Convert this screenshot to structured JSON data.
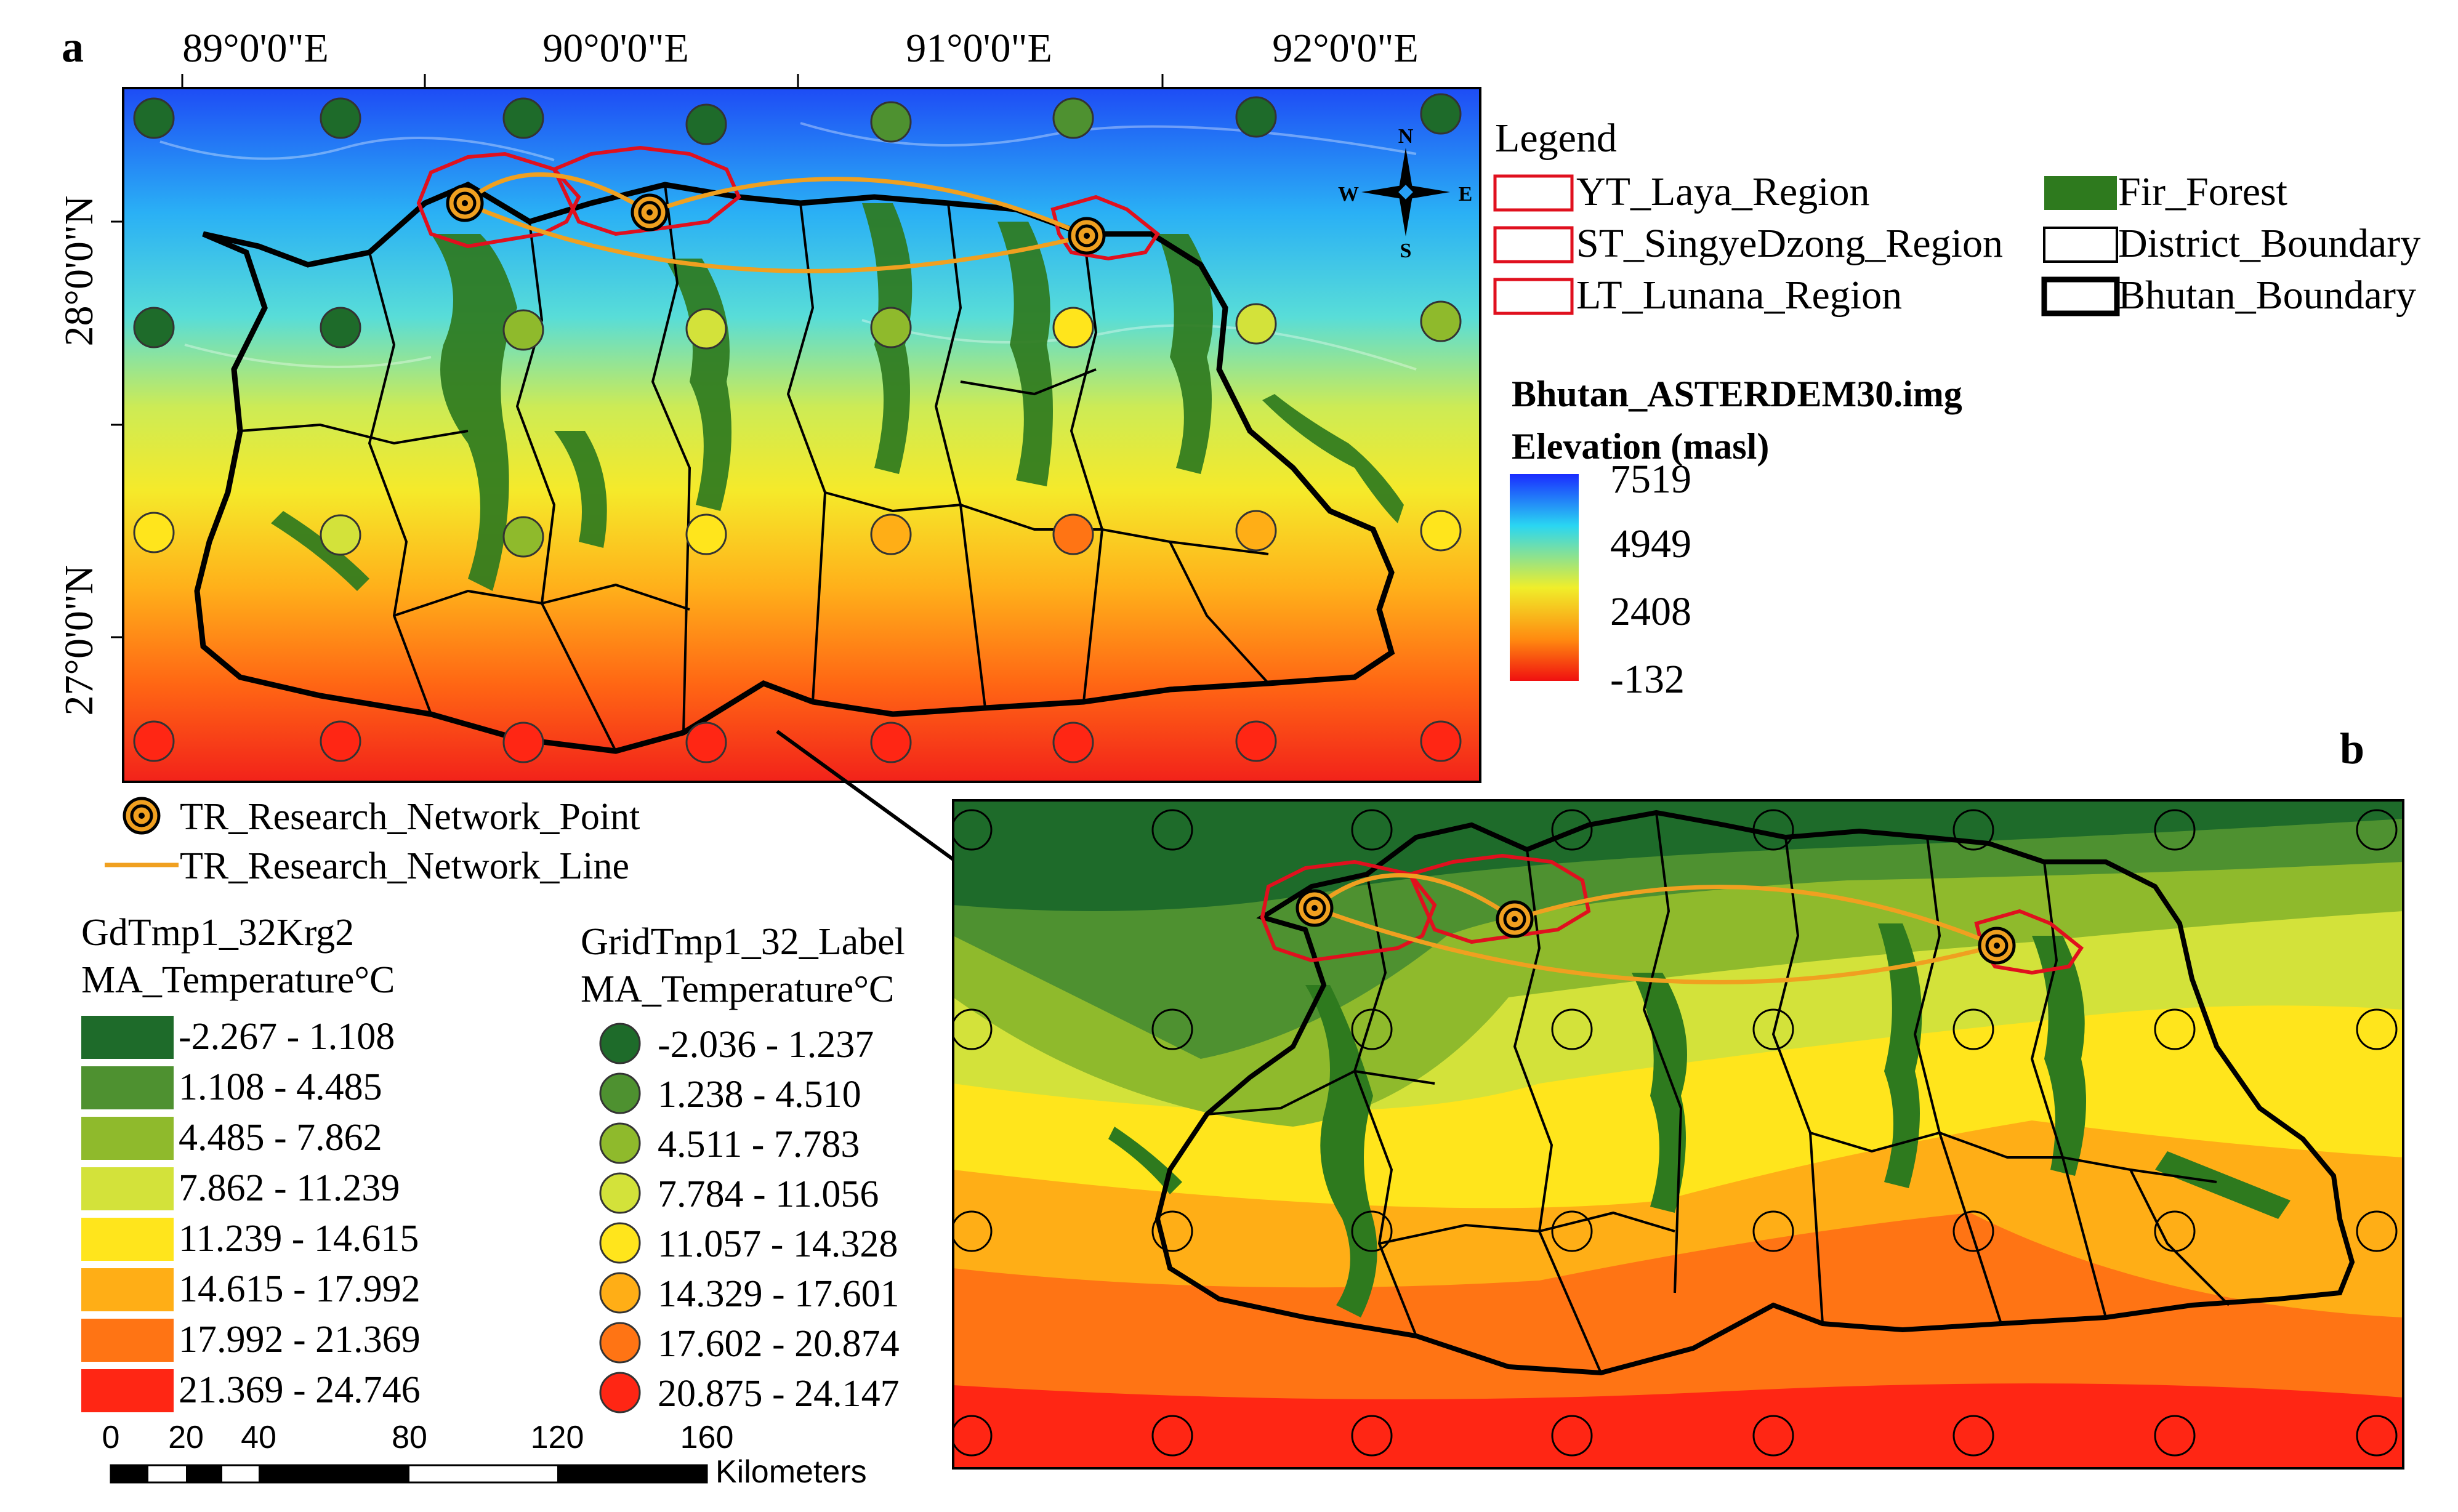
{
  "panel_a": {
    "label": "a",
    "lon_labels": [
      "89°0'0\"E",
      "90°0'0\"E",
      "91°0'0\"E",
      "92°0'0\"E"
    ],
    "lat_labels": [
      "28°0'0\"N",
      "27°0'0\"N"
    ],
    "compass": {
      "n": "N",
      "s": "S",
      "e": "E",
      "w": "W"
    }
  },
  "panel_b": {
    "label": "b"
  },
  "legend": {
    "title": "Legend",
    "items": [
      {
        "label": "YT_Laya_Region",
        "type": "region-outline",
        "color": "#e0101e"
      },
      {
        "label": "ST_SingyeDzong_Region",
        "type": "region-outline",
        "color": "#e0101e"
      },
      {
        "label": "LT_Lunana_Region",
        "type": "region-outline",
        "color": "#e0101e"
      },
      {
        "label": "Fir_Forest",
        "type": "fill",
        "color": "#2e7a1e"
      },
      {
        "label": "District_Boundary",
        "type": "outline-thin",
        "color": "#000000"
      },
      {
        "label": "Bhutan_Boundary",
        "type": "outline-thick",
        "color": "#000000"
      }
    ]
  },
  "dem": {
    "title": "Bhutan_ASTERDEM30.img",
    "subtitle": "Elevation (masl)",
    "ticks": [
      "7519",
      "4949",
      "2408",
      "-132"
    ],
    "colors": [
      "#1a3cff",
      "#35d8f0",
      "#e8ee2a",
      "#ff8a10",
      "#f01010"
    ]
  },
  "network": {
    "point_label": "TR_Research_Network_Point",
    "line_label": "TR_Research_Network_Line",
    "line_color": "#f0a020"
  },
  "krig_legend": {
    "title": "GdTmp1_32Krg2",
    "subtitle": "MA_Temperature°C",
    "classes": [
      {
        "label": "-2.267 - 1.108",
        "color": "#1e6b2a"
      },
      {
        "label": "1.108 - 4.485",
        "color": "#4e9130"
      },
      {
        "label": "4.485 - 7.862",
        "color": "#8fba2c"
      },
      {
        "label": "7.862 - 11.239",
        "color": "#d3e23a"
      },
      {
        "label": "11.239 - 14.615",
        "color": "#ffe51c"
      },
      {
        "label": "14.615 - 17.992",
        "color": "#ffae16"
      },
      {
        "label": "17.992 - 21.369",
        "color": "#ff7414"
      },
      {
        "label": "21.369 - 24.746",
        "color": "#ff2614"
      }
    ]
  },
  "label_legend": {
    "title": "GridTmp1_32_Label",
    "subtitle": "MA_Temperature°C",
    "classes": [
      {
        "label": "-2.036 - 1.237",
        "color": "#1e6b2a"
      },
      {
        "label": "1.238 - 4.510",
        "color": "#4e9130"
      },
      {
        "label": "4.511 - 7.783",
        "color": "#8fba2c"
      },
      {
        "label": "7.784 - 11.056",
        "color": "#d3e23a"
      },
      {
        "label": "11.057 - 14.328",
        "color": "#ffe51c"
      },
      {
        "label": "14.329 - 17.601",
        "color": "#ffae16"
      },
      {
        "label": "17.602 - 20.874",
        "color": "#ff7414"
      },
      {
        "label": "20.875 - 24.147",
        "color": "#ff2614"
      }
    ]
  },
  "scale_bar": {
    "ticks": [
      "0",
      "20",
      "40",
      "80",
      "120",
      "160"
    ],
    "unit": "Kilometers"
  }
}
